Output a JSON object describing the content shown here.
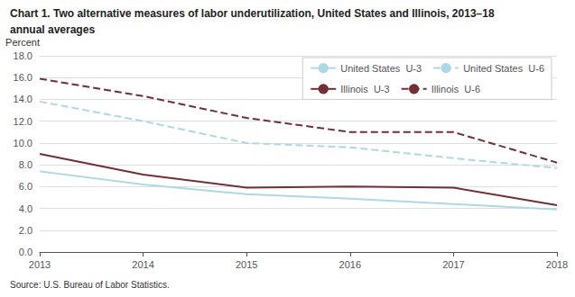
{
  "chart_data": {
    "type": "line",
    "title": "Chart 1. Two alternative measures of labor underutilization, United States and Illinois, 2013–18",
    "subtitle": "annual averages",
    "ylabel": "Percent",
    "source": "Source: U.S. Bureau of Labor Statistics.",
    "x": [
      2013,
      2014,
      2015,
      2016,
      2017,
      2018
    ],
    "xlim": [
      2013,
      2018
    ],
    "xticks": [
      2013,
      2014,
      2015,
      2016,
      2017,
      2018
    ],
    "ylim": [
      0,
      18
    ],
    "yticks": [
      {
        "value": 0,
        "label": "0.0"
      },
      {
        "value": 2,
        "label": "2.0"
      },
      {
        "value": 4,
        "label": "4.0"
      },
      {
        "value": 6,
        "label": "6.0"
      },
      {
        "value": 8,
        "label": "8.0"
      },
      {
        "value": 10,
        "label": "10.0"
      },
      {
        "value": 12,
        "label": "12.0"
      },
      {
        "value": 14,
        "label": "14.0"
      },
      {
        "value": 16,
        "label": "16.0"
      },
      {
        "value": 18,
        "label": "18.0"
      }
    ],
    "grid": "y",
    "legend": "upper right",
    "series": [
      {
        "name": "United States  U-3",
        "color": "#add8e6",
        "line_style": "solid",
        "values": [
          7.4,
          6.2,
          5.3,
          4.9,
          4.4,
          3.9
        ]
      },
      {
        "name": "United States  U-6",
        "color": "#add8e6",
        "line_style": "dashed",
        "values": [
          13.8,
          12.0,
          10.0,
          9.6,
          8.6,
          7.7
        ]
      },
      {
        "name": "Illinois  U-3",
        "color": "#722f37",
        "line_style": "solid",
        "values": [
          9.0,
          7.1,
          5.9,
          6.0,
          5.9,
          4.3
        ]
      },
      {
        "name": "Illinois  U-6",
        "color": "#722f37",
        "line_style": "dashed",
        "values": [
          15.9,
          14.3,
          12.3,
          11.0,
          11.0,
          8.2
        ]
      }
    ]
  }
}
